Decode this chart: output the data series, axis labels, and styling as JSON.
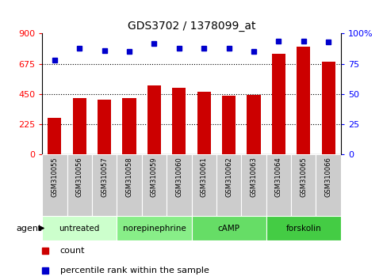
{
  "title": "GDS3702 / 1378099_at",
  "samples": [
    "GSM310055",
    "GSM310056",
    "GSM310057",
    "GSM310058",
    "GSM310059",
    "GSM310060",
    "GSM310061",
    "GSM310062",
    "GSM310063",
    "GSM310064",
    "GSM310065",
    "GSM310066"
  ],
  "counts": [
    270,
    420,
    405,
    420,
    510,
    495,
    465,
    435,
    440,
    750,
    800,
    690
  ],
  "percentiles": [
    78,
    88,
    86,
    85,
    92,
    88,
    88,
    88,
    85,
    94,
    94,
    93
  ],
  "ylim_left": [
    0,
    900
  ],
  "ylim_right": [
    0,
    100
  ],
  "yticks_left": [
    0,
    225,
    450,
    675,
    900
  ],
  "yticks_right": [
    0,
    25,
    50,
    75,
    100
  ],
  "yticklabels_right": [
    "0",
    "25",
    "50",
    "75",
    "100%"
  ],
  "bar_color": "#cc0000",
  "dot_color": "#0000cc",
  "agent_label": "agent",
  "groups": [
    {
      "label": "untreated",
      "start": 0,
      "end": 2,
      "color": "#ccffcc"
    },
    {
      "label": "norepinephrine",
      "start": 3,
      "end": 5,
      "color": "#88ee88"
    },
    {
      "label": "cAMP",
      "start": 6,
      "end": 8,
      "color": "#66dd66"
    },
    {
      "label": "forskolin",
      "start": 9,
      "end": 11,
      "color": "#44cc44"
    }
  ],
  "legend_count_label": "count",
  "legend_pct_label": "percentile rank within the sample",
  "tick_area_color": "#cccccc",
  "background_color": "#ffffff",
  "group_separator_color": "#ffffff"
}
